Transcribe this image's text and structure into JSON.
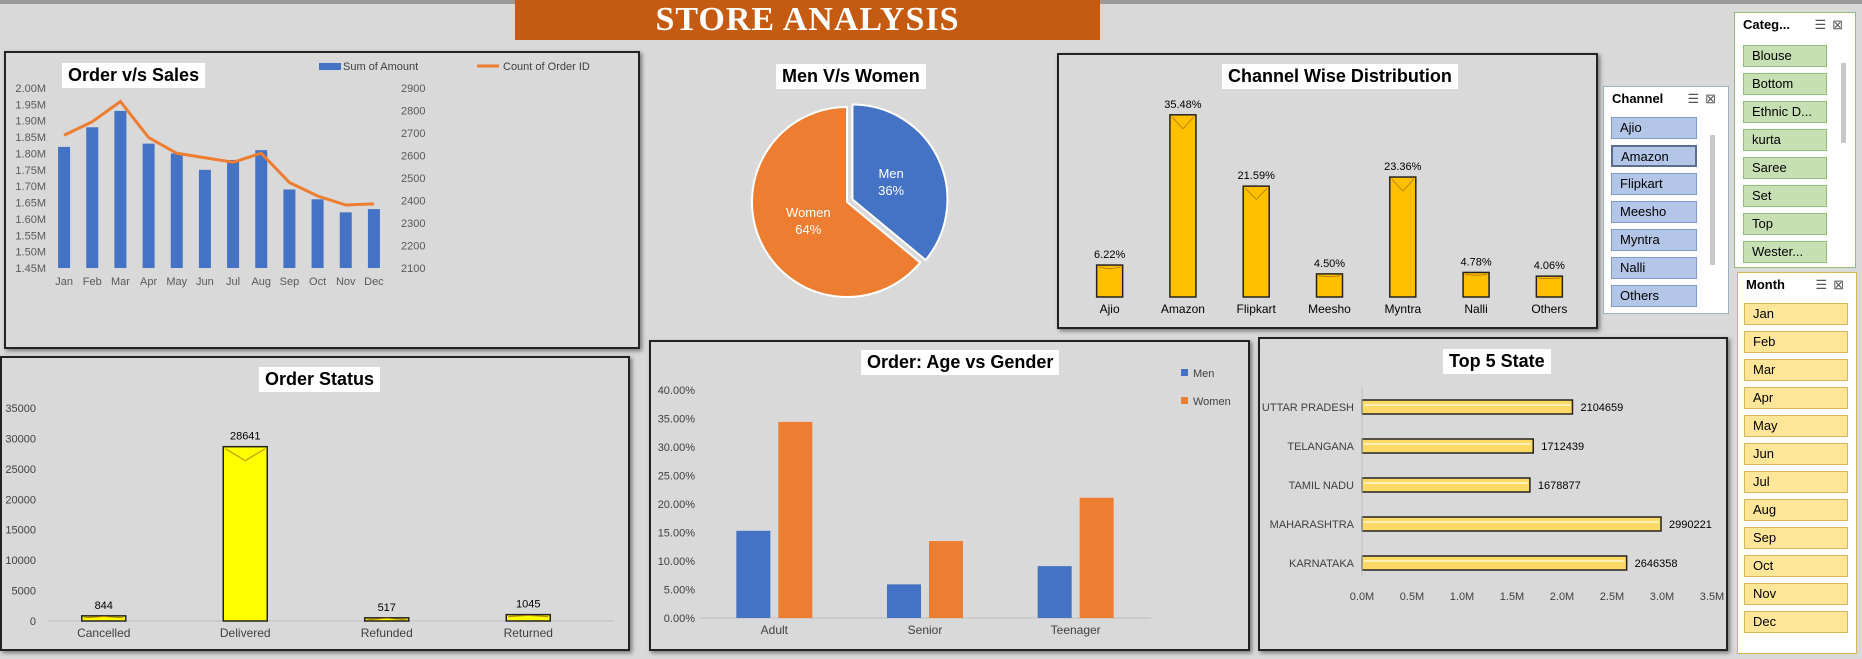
{
  "banner": {
    "title": "STORE ANALYSIS"
  },
  "order_sales": {
    "title": "Order  v/s Sales",
    "legend_amount": "Sum of Amount",
    "legend_count": "Count of Order ID",
    "colors": {
      "bars": "#4472c4",
      "line": "#ed7d31"
    },
    "chart_data": {
      "type": "bar",
      "categories": [
        "Jan",
        "Feb",
        "Mar",
        "Apr",
        "May",
        "Jun",
        "Jul",
        "Aug",
        "Sep",
        "Oct",
        "Nov",
        "Dec"
      ],
      "series": [
        {
          "name": "Sum of Amount",
          "axis": "left",
          "values": [
            1.82,
            1.88,
            1.93,
            1.83,
            1.8,
            1.75,
            1.78,
            1.81,
            1.69,
            1.66,
            1.62,
            1.63
          ]
        },
        {
          "name": "Count of Order ID",
          "type": "line",
          "axis": "right",
          "values": [
            2690,
            2750,
            2840,
            2680,
            2610,
            2590,
            2570,
            2610,
            2480,
            2420,
            2380,
            2385
          ]
        }
      ],
      "ylim_left": [
        1.45,
        2.0
      ],
      "ylim_right": [
        2100,
        2900
      ],
      "left_ticks": [
        "1.45M",
        "1.50M",
        "1.55M",
        "1.60M",
        "1.65M",
        "1.70M",
        "1.75M",
        "1.80M",
        "1.85M",
        "1.90M",
        "1.95M",
        "2.00M"
      ],
      "right_ticks": [
        "2100",
        "2200",
        "2300",
        "2400",
        "2500",
        "2600",
        "2700",
        "2800",
        "2900"
      ]
    }
  },
  "men_women": {
    "title": "Men V/s Women",
    "chart_data": {
      "type": "pie",
      "slices": [
        {
          "name": "Men",
          "value": 36,
          "label": "36%",
          "color": "#4472c4"
        },
        {
          "name": "Women",
          "value": 64,
          "label": "64%",
          "color": "#ed7d31"
        }
      ]
    }
  },
  "channel": {
    "title": "Channel Wise Distribution",
    "colors": {
      "bar": "#ffc000"
    },
    "chart_data": {
      "type": "bar",
      "categories": [
        "Ajio",
        "Amazon",
        "Flipkart",
        "Meesho",
        "Myntra",
        "Nalli",
        "Others"
      ],
      "values": [
        6.22,
        35.48,
        21.59,
        4.5,
        23.36,
        4.78,
        4.06
      ],
      "labels": [
        "6.22%",
        "35.48%",
        "21.59%",
        "4.50%",
        "23.36%",
        "4.78%",
        "4.06%"
      ],
      "ylim": [
        0,
        37
      ]
    }
  },
  "order_status": {
    "title": "Order Status",
    "colors": {
      "bar": "#ffff00"
    },
    "chart_data": {
      "type": "bar",
      "categories": [
        "Cancelled",
        "Delivered",
        "Refunded",
        "Returned"
      ],
      "values": [
        844,
        28641,
        517,
        1045
      ],
      "labels": [
        "844",
        "28641",
        "517",
        "1045"
      ],
      "ylim": [
        0,
        35000
      ],
      "ticks": [
        "0",
        "5000",
        "10000",
        "15000",
        "20000",
        "25000",
        "30000",
        "35000"
      ]
    }
  },
  "age_gender": {
    "title": "Order: Age vs Gender",
    "legend": [
      "Men",
      "Women"
    ],
    "colors": {
      "men": "#4472c4",
      "women": "#ed7d31"
    },
    "chart_data": {
      "type": "bar",
      "categories": [
        "Adult",
        "Senior",
        "Teenager"
      ],
      "series": [
        {
          "name": "Men",
          "values": [
            15.3,
            5.9,
            9.1
          ]
        },
        {
          "name": "Women",
          "values": [
            34.4,
            13.5,
            21.1
          ]
        }
      ],
      "ylim": [
        0,
        40
      ],
      "ticks": [
        "0.00%",
        "5.00%",
        "10.00%",
        "15.00%",
        "20.00%",
        "25.00%",
        "30.00%",
        "35.00%",
        "40.00%"
      ]
    }
  },
  "top_state": {
    "title": "Top 5 State",
    "colors": {
      "bar": "#ffd966"
    },
    "chart_data": {
      "type": "bar",
      "orientation": "horizontal",
      "categories": [
        "UTTAR PRADESH",
        "TELANGANA",
        "TAMIL NADU",
        "MAHARASHTRA",
        "KARNATAKA"
      ],
      "values": [
        2104659,
        1712439,
        1678877,
        2990221,
        2646358
      ],
      "labels": [
        "2104659",
        "1712439",
        "1678877",
        "2990221",
        "2646358"
      ],
      "xlim": [
        0,
        3500000
      ],
      "ticks": [
        "0.0M",
        "0.5M",
        "1.0M",
        "1.5M",
        "2.0M",
        "2.5M",
        "3.0M",
        "3.5M"
      ]
    }
  },
  "category_slicer": {
    "title": "Categ...",
    "items": [
      "Blouse",
      "Bottom",
      "Ethnic D...",
      "kurta",
      "Saree",
      "Set",
      "Top",
      "Wester..."
    ]
  },
  "channel_slicer": {
    "title": "Channel",
    "items": [
      "Ajio",
      "Amazon",
      "Flipkart",
      "Meesho",
      "Myntra",
      "Nalli",
      "Others"
    ]
  },
  "month_slicer": {
    "title": "Month",
    "items": [
      "Jan",
      "Feb",
      "Mar",
      "Apr",
      "May",
      "Jun",
      "Jul",
      "Aug",
      "Sep",
      "Oct",
      "Nov",
      "Dec"
    ]
  }
}
